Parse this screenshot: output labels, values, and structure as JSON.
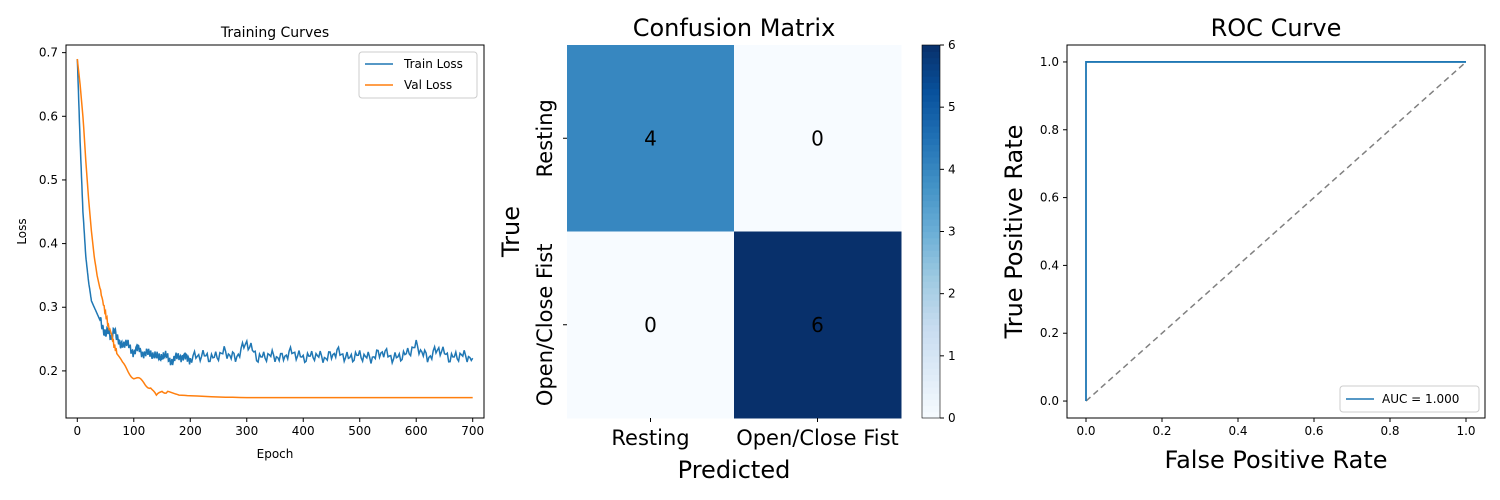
{
  "chart_data": [
    {
      "type": "line",
      "title": "Training Curves",
      "xlabel": "Epoch",
      "ylabel": "Loss",
      "xlim": [
        -20,
        720
      ],
      "ylim": [
        0.126,
        0.712
      ],
      "xticks": [
        "0",
        "100",
        "200",
        "300",
        "400",
        "500",
        "600",
        "700"
      ],
      "yticks": [
        "0.2",
        "0.3",
        "0.4",
        "0.5",
        "0.6",
        "0.7"
      ],
      "legend": "top-right",
      "series": [
        {
          "name": "Train Loss",
          "color": "#1f77b4",
          "x": [
            0,
            5,
            10,
            15,
            20,
            25,
            30,
            35,
            40,
            45,
            50,
            55,
            60,
            65,
            70,
            75,
            80,
            90,
            100,
            110,
            120,
            130,
            140,
            150,
            160,
            170,
            180,
            190,
            200,
            220,
            240,
            260,
            280,
            300,
            320,
            340,
            360,
            380,
            400,
            420,
            440,
            460,
            480,
            500,
            520,
            540,
            560,
            580,
            600,
            620,
            640,
            660,
            680,
            700
          ],
          "y": [
            0.69,
            0.56,
            0.45,
            0.38,
            0.34,
            0.31,
            0.3,
            0.29,
            0.28,
            0.27,
            0.26,
            0.26,
            0.25,
            0.27,
            0.25,
            0.24,
            0.245,
            0.24,
            0.23,
            0.235,
            0.225,
            0.23,
            0.22,
            0.225,
            0.22,
            0.215,
            0.225,
            0.22,
            0.22,
            0.225,
            0.22,
            0.23,
            0.22,
            0.245,
            0.22,
            0.225,
            0.22,
            0.23,
            0.22,
            0.225,
            0.22,
            0.23,
            0.22,
            0.225,
            0.22,
            0.23,
            0.22,
            0.225,
            0.24,
            0.22,
            0.235,
            0.22,
            0.225,
            0.22
          ]
        },
        {
          "name": "Val Loss",
          "color": "#ff7f0e",
          "x": [
            0,
            5,
            10,
            15,
            20,
            25,
            30,
            35,
            40,
            45,
            50,
            55,
            60,
            65,
            70,
            80,
            90,
            100,
            110,
            120,
            130,
            140,
            150,
            160,
            170,
            180,
            200,
            250,
            300,
            350,
            400,
            450,
            500,
            550,
            600,
            650,
            700
          ],
          "y": [
            0.69,
            0.65,
            0.6,
            0.53,
            0.47,
            0.42,
            0.38,
            0.35,
            0.33,
            0.31,
            0.29,
            0.27,
            0.26,
            0.24,
            0.23,
            0.21,
            0.2,
            0.19,
            0.185,
            0.18,
            0.175,
            0.158,
            0.17,
            0.168,
            0.165,
            0.162,
            0.161,
            0.159,
            0.158,
            0.158,
            0.158,
            0.158,
            0.158,
            0.158,
            0.158,
            0.158,
            0.158
          ]
        }
      ]
    },
    {
      "type": "heatmap",
      "title": "Confusion Matrix",
      "xlabel": "Predicted",
      "ylabel": "True",
      "x_categories": [
        "Resting",
        "Open/Close Fist"
      ],
      "y_categories": [
        "Resting",
        "Open/Close Fist"
      ],
      "values": [
        [
          4,
          0
        ],
        [
          0,
          6
        ]
      ],
      "colormap": "Blues",
      "colorbar_range": [
        0,
        6
      ],
      "colorbar_ticks": [
        "0",
        "1",
        "2",
        "3",
        "4",
        "5",
        "6"
      ]
    },
    {
      "type": "line",
      "title": "ROC Curve",
      "xlabel": "False Positive Rate",
      "ylabel": "True Positive Rate",
      "xlim": [
        -0.05,
        1.05
      ],
      "ylim": [
        -0.05,
        1.05
      ],
      "xticks": [
        "0.0",
        "0.2",
        "0.4",
        "0.6",
        "0.8",
        "1.0"
      ],
      "yticks": [
        "0.0",
        "0.2",
        "0.4",
        "0.6",
        "0.8",
        "1.0"
      ],
      "legend": "bottom-right",
      "series": [
        {
          "name": "AUC = 1.000",
          "color": "#1f77b4",
          "x": [
            0,
            0,
            1
          ],
          "y": [
            0,
            1,
            1
          ]
        },
        {
          "color": "#808080",
          "style": "dashed",
          "x": [
            0,
            1
          ],
          "y": [
            0,
            1
          ]
        }
      ]
    }
  ]
}
